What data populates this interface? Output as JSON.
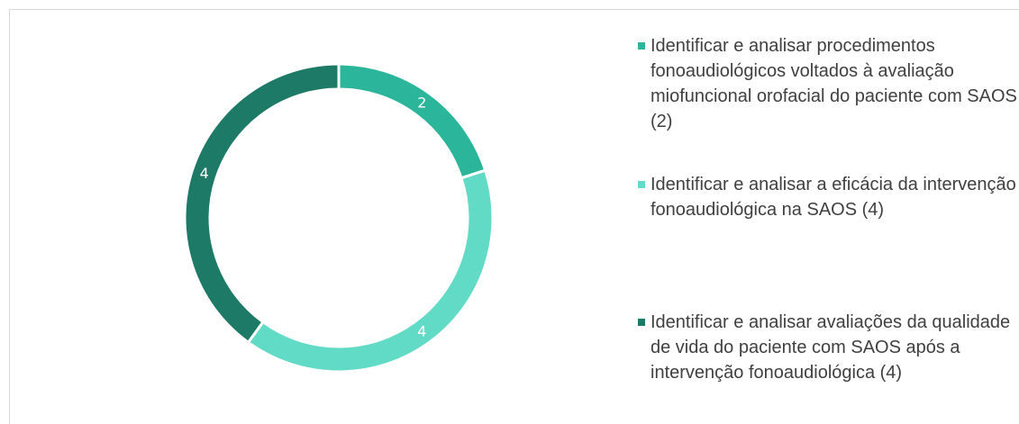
{
  "chart_data": {
    "type": "donut",
    "categories": [
      "Identificar e analisar procedimentos fonoaudiológicos voltados à avaliação miofuncional orofacial do paciente com SAOS (2)",
      "Identificar e analisar a eficácia da intervenção fonoaudiológica na SAOS (4)",
      "Identificar e analisar avaliações da qualidade de vida do paciente com SAOS após a intervenção fonoaudiológica (4)"
    ],
    "values": [
      2,
      4,
      4
    ],
    "colors": [
      "#2bb59a",
      "#62dbc6",
      "#1c7a66"
    ],
    "legend": "right"
  }
}
